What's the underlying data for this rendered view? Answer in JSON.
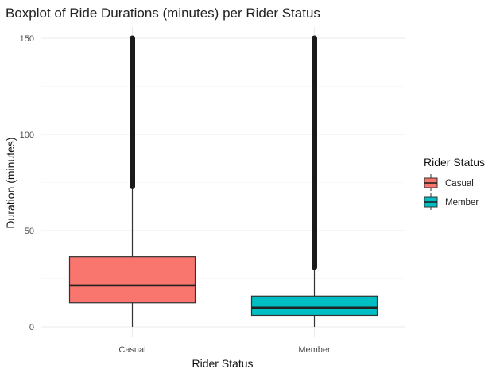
{
  "chart_data": {
    "type": "boxplot",
    "title": "Boxplot of Ride Durations (minutes) per Rider Status",
    "xlabel": "Rider Status",
    "ylabel": "Duration (minutes)",
    "ylim": [
      0,
      150
    ],
    "y_ticks": [
      0,
      50,
      100,
      150
    ],
    "grid": true,
    "legend": {
      "title": "Rider Status",
      "position": "right",
      "entries": [
        "Casual",
        "Member"
      ]
    },
    "categories": [
      "Casual",
      "Member"
    ],
    "series": [
      {
        "name": "Casual",
        "color": "#F8766D",
        "whisker_low": 0,
        "q1": 12.5,
        "median": 21.5,
        "q3": 36.5,
        "whisker_high": 73,
        "outlier_range": [
          73,
          150
        ]
      },
      {
        "name": "Member",
        "color": "#00BFC4",
        "whisker_low": 0,
        "q1": 6,
        "median": 10,
        "q3": 16,
        "whisker_high": 31,
        "outlier_range": [
          31,
          150
        ]
      }
    ]
  }
}
